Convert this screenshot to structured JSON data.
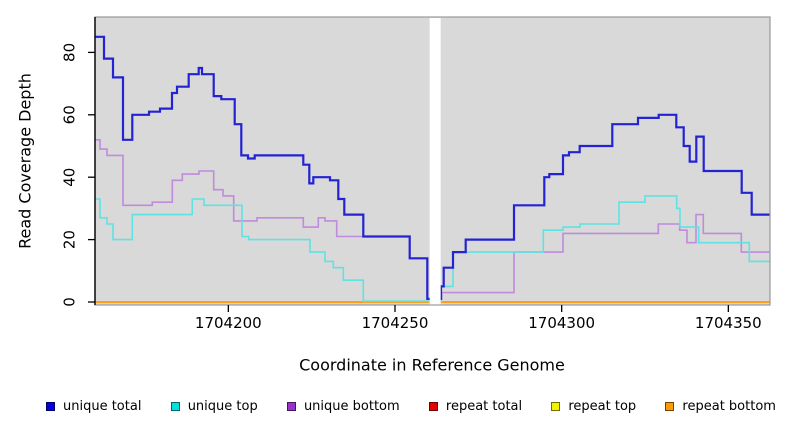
{
  "chart_data": {
    "type": "step-line",
    "title": "",
    "xlabel": "Coordinate in Reference Genome",
    "ylabel": "Read Coverage Depth",
    "x_ticks": [
      1704200,
      1704250,
      1704300,
      1704350
    ],
    "y_ticks": [
      0,
      20,
      40,
      60,
      80
    ],
    "xlim": [
      1704160,
      1704362.5
    ],
    "ylim": [
      0,
      91
    ],
    "grid": false,
    "panel_background": "#d9d9d9",
    "panel_border_color": "#999999",
    "axis_color": "#000000",
    "gap": {
      "x_from": 1704260.4,
      "x_to": 1704263.7,
      "color": "#ffffff"
    },
    "legend_position": "bottom",
    "legend": [
      {
        "label": "unique total",
        "color": "#0000e0"
      },
      {
        "label": "unique top",
        "color": "#00e0e0"
      },
      {
        "label": "unique bottom",
        "color": "#9932cc"
      },
      {
        "label": "repeat total",
        "color": "#e60000"
      },
      {
        "label": "repeat top",
        "color": "#f2f200"
      },
      {
        "label": "repeat bottom",
        "color": "#ff9900"
      }
    ],
    "series": [
      {
        "name": "repeat total",
        "color": "#dd0000",
        "width": 1.5,
        "end": 1704362.5,
        "points": [
          [
            1704160,
            0
          ]
        ]
      },
      {
        "name": "repeat top",
        "color": "#f0f000",
        "width": 1.5,
        "end": 1704362.5,
        "points": [
          [
            1704160,
            0
          ]
        ]
      },
      {
        "name": "repeat bottom",
        "color": "#ff9e1b",
        "width": 2,
        "end": 1704362.5,
        "points": [
          [
            1704160,
            0
          ]
        ]
      },
      {
        "name": "unique bottom",
        "color": "#c08bdc",
        "width": 1.6,
        "end": 1704362.5,
        "points": [
          [
            1704160,
            52
          ],
          [
            1704161.5,
            49
          ],
          [
            1704163.6,
            47
          ],
          [
            1704168.4,
            31
          ],
          [
            1704177.2,
            32
          ],
          [
            1704183.2,
            39
          ],
          [
            1704186.2,
            41
          ],
          [
            1704191.2,
            42
          ],
          [
            1704195.6,
            36
          ],
          [
            1704198.4,
            34
          ],
          [
            1704201.6,
            26
          ],
          [
            1704208.6,
            27
          ],
          [
            1704222.5,
            24
          ],
          [
            1704227,
            27
          ],
          [
            1704229,
            26
          ],
          [
            1704232.5,
            21
          ],
          [
            1704254.4,
            14
          ],
          [
            1704259.7,
            1
          ],
          [
            1704264,
            3
          ],
          [
            1704285.7,
            16
          ],
          [
            1704300.4,
            22
          ],
          [
            1704329,
            25
          ],
          [
            1704335.4,
            23
          ],
          [
            1704337.6,
            19
          ],
          [
            1704340.3,
            28
          ],
          [
            1704342.5,
            22
          ],
          [
            1704353.9,
            16
          ]
        ]
      },
      {
        "name": "unique top",
        "color": "#5fe2e2",
        "width": 1.6,
        "end": 1704362.5,
        "points": [
          [
            1704160,
            33
          ],
          [
            1704161.5,
            27
          ],
          [
            1704163.6,
            25
          ],
          [
            1704165.4,
            20
          ],
          [
            1704171.2,
            28
          ],
          [
            1704189.2,
            33
          ],
          [
            1704192.7,
            31
          ],
          [
            1704204.1,
            21
          ],
          [
            1704206.1,
            20
          ],
          [
            1704224.5,
            16
          ],
          [
            1704229,
            13
          ],
          [
            1704231.5,
            11
          ],
          [
            1704234.5,
            7
          ],
          [
            1704240.5,
            0.3
          ],
          [
            1704263.8,
            5
          ],
          [
            1704267.4,
            16
          ],
          [
            1704294.5,
            23
          ],
          [
            1704300.4,
            24
          ],
          [
            1704305.5,
            25
          ],
          [
            1704317.2,
            32
          ],
          [
            1704325,
            34
          ],
          [
            1704334.5,
            30
          ],
          [
            1704335.5,
            24
          ],
          [
            1704341.1,
            19
          ],
          [
            1704356.3,
            13
          ]
        ]
      },
      {
        "name": "unique total",
        "color": "#2323d3",
        "width": 2.2,
        "end": 1704362.5,
        "points": [
          [
            1704160,
            85
          ],
          [
            1704162.7,
            78
          ],
          [
            1704165.4,
            72
          ],
          [
            1704168.4,
            52
          ],
          [
            1704171.2,
            60
          ],
          [
            1704176.2,
            61
          ],
          [
            1704179.5,
            62
          ],
          [
            1704183.1,
            67
          ],
          [
            1704184.6,
            69
          ],
          [
            1704188.1,
            73
          ],
          [
            1704191.1,
            75
          ],
          [
            1704192.1,
            73
          ],
          [
            1704195.6,
            66
          ],
          [
            1704197.9,
            65
          ],
          [
            1704201.9,
            57
          ],
          [
            1704203.9,
            47
          ],
          [
            1704205.9,
            46
          ],
          [
            1704207.9,
            47
          ],
          [
            1704222.5,
            44
          ],
          [
            1704224.3,
            38
          ],
          [
            1704225.5,
            40
          ],
          [
            1704230.5,
            39
          ],
          [
            1704233,
            33
          ],
          [
            1704234.8,
            28
          ],
          [
            1704240.5,
            21
          ],
          [
            1704254.4,
            14
          ],
          [
            1704259.7,
            1
          ],
          [
            1704263.8,
            5
          ],
          [
            1704264.6,
            11
          ],
          [
            1704267.4,
            16
          ],
          [
            1704271.2,
            20
          ],
          [
            1704285.7,
            31
          ],
          [
            1704294.8,
            40
          ],
          [
            1704296.3,
            41
          ],
          [
            1704300.4,
            47
          ],
          [
            1704302.2,
            48
          ],
          [
            1704305.4,
            50
          ],
          [
            1704315.2,
            57
          ],
          [
            1704322.9,
            59
          ],
          [
            1704329.1,
            60
          ],
          [
            1704334.4,
            56
          ],
          [
            1704336.6,
            50
          ],
          [
            1704338.4,
            45
          ],
          [
            1704340.4,
            53
          ],
          [
            1704342.6,
            42
          ],
          [
            1704354,
            35
          ],
          [
            1704357,
            28
          ]
        ]
      }
    ]
  }
}
